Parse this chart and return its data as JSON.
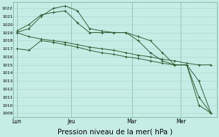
{
  "bg_color": "#c6ece6",
  "grid_color": "#a8d8d0",
  "line_color": "#2d5a2d",
  "xlabel": "Pression niveau de la mer( hPa )",
  "xlabel_fontsize": 7.5,
  "yticks": [
    1009,
    1010,
    1011,
    1012,
    1013,
    1014,
    1015,
    1016,
    1017,
    1018,
    1019,
    1020,
    1021,
    1022
  ],
  "xtick_labels": [
    "Lun",
    "Jeu",
    "Mar",
    "Mer"
  ],
  "series": [
    {
      "x": [
        0,
        1,
        2,
        3,
        4,
        5,
        6,
        7,
        8,
        9,
        10,
        11,
        12,
        13,
        14,
        15,
        16
      ],
      "y": [
        1019.0,
        1019.5,
        1021.0,
        1022.0,
        1022.3,
        1021.7,
        1019.5,
        1019.2,
        1019.0,
        1019.0,
        1018.5,
        1018.0,
        1016.5,
        1015.0,
        1015.0,
        1013.0,
        1009.0
      ]
    },
    {
      "x": [
        0,
        1,
        2,
        3,
        4,
        5,
        6,
        7,
        8,
        9,
        10,
        11,
        12,
        13,
        14,
        15,
        16
      ],
      "y": [
        1019.2,
        1020.0,
        1021.2,
        1021.5,
        1021.7,
        1020.2,
        1019.0,
        1019.0,
        1019.0,
        1019.0,
        1018.0,
        1016.5,
        1015.5,
        1015.0,
        1015.0,
        1011.0,
        1009.0
      ]
    },
    {
      "x": [
        0,
        1,
        2,
        3,
        4,
        5,
        6,
        7,
        8,
        9,
        10,
        11,
        12,
        13,
        14,
        15,
        16
      ],
      "y": [
        1019.0,
        1018.5,
        1018.2,
        1018.0,
        1017.8,
        1017.5,
        1017.2,
        1017.0,
        1016.8,
        1016.5,
        1016.2,
        1016.0,
        1015.7,
        1015.5,
        1015.2,
        1015.0,
        1015.0
      ]
    },
    {
      "x": [
        0,
        1,
        2,
        3,
        4,
        5,
        6,
        7,
        8,
        9,
        10,
        11,
        12,
        13,
        14,
        15,
        16
      ],
      "y": [
        1017.0,
        1016.8,
        1018.0,
        1017.8,
        1017.5,
        1017.2,
        1016.8,
        1016.5,
        1016.3,
        1016.0,
        1015.8,
        1015.5,
        1015.2,
        1015.0,
        1015.0,
        1010.0,
        1009.0
      ]
    }
  ],
  "vline_x": [
    0,
    4.5,
    9.5,
    13.5
  ],
  "xtick_x": [
    0,
    4.5,
    9.5,
    13.5
  ],
  "xlim": [
    -0.3,
    16.5
  ],
  "ylim_bottom": 1008.5,
  "ylim_top": 1022.8
}
